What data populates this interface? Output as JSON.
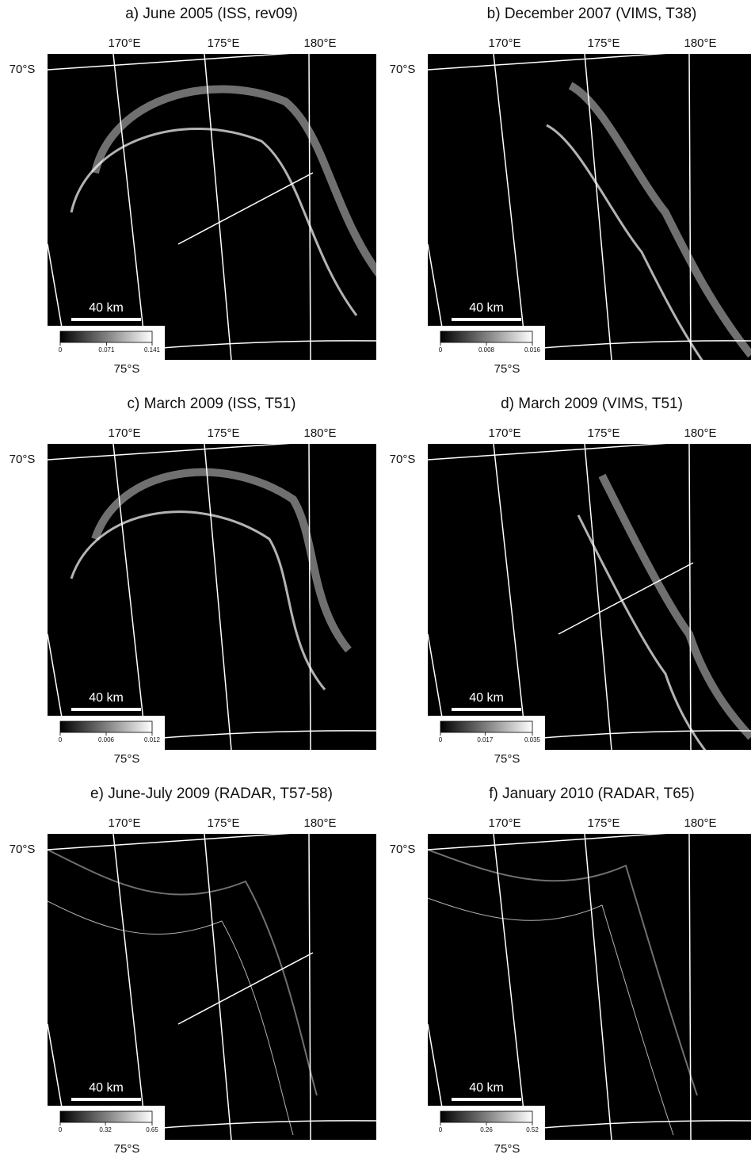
{
  "panels": [
    {
      "title": "a) June 2005 (ISS, rev09)",
      "longitudes": [
        "170°E",
        "175°E",
        "180°E"
      ],
      "latitudes": [
        "70°S",
        "75°S"
      ],
      "scale_bar": "40 km",
      "colorbar_ticks": [
        0,
        0.071,
        0.141
      ]
    },
    {
      "title": "b) December 2007 (VIMS, T38)",
      "longitudes": [
        "170°E",
        "175°E",
        "180°E"
      ],
      "latitudes": [
        "70°S",
        "75°S"
      ],
      "scale_bar": "40 km",
      "colorbar_ticks": [
        0,
        0.008,
        0.016
      ]
    },
    {
      "title": "c) March 2009 (ISS, T51)",
      "longitudes": [
        "170°E",
        "175°E",
        "180°E"
      ],
      "latitudes": [
        "70°S",
        "75°S"
      ],
      "scale_bar": "40 km",
      "colorbar_ticks": [
        0,
        0.006,
        0.012
      ]
    },
    {
      "title": "d) March 2009 (VIMS, T51)",
      "longitudes": [
        "170°E",
        "175°E",
        "180°E"
      ],
      "latitudes": [
        "70°S",
        "75°S"
      ],
      "scale_bar": "40 km",
      "colorbar_ticks": [
        0,
        0.017,
        0.035
      ]
    },
    {
      "title": "e) June-July 2009 (RADAR, T57-58)",
      "longitudes": [
        "170°E",
        "175°E",
        "180°E"
      ],
      "latitudes": [
        "70°S",
        "75°S"
      ],
      "scale_bar": "40 km",
      "colorbar_ticks": [
        0,
        0.32,
        0.65
      ]
    },
    {
      "title": "f) January 2010 (RADAR, T65)",
      "longitudes": [
        "170°E",
        "175°E",
        "180°E"
      ],
      "latitudes": [
        "70°S",
        "75°S"
      ],
      "scale_bar": "40 km",
      "colorbar_ticks": [
        0,
        0.26,
        0.52
      ]
    }
  ]
}
